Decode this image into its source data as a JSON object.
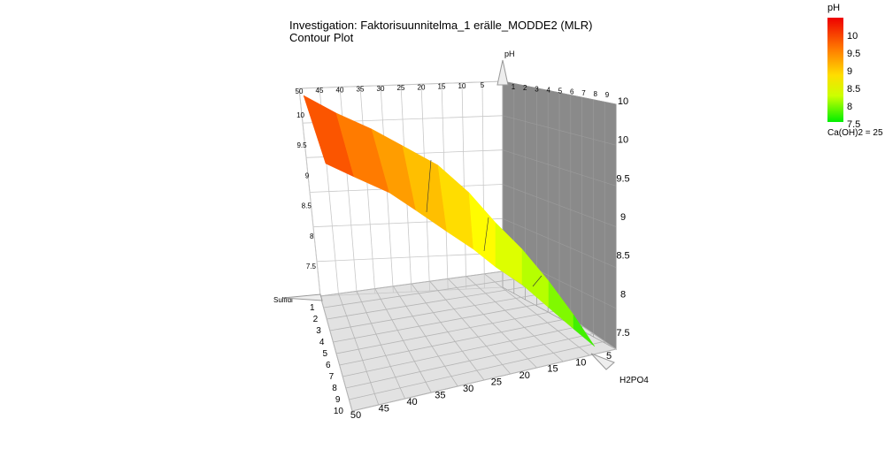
{
  "chart_data": {
    "type": "surface",
    "title": "Investigation: Faktorisuunnitelma_1 erälle_MODDE2 (MLR)",
    "subtitle": "Contour Plot",
    "response": "pH",
    "factors": {
      "x": {
        "name": "H2PO4",
        "range": [
          0,
          50
        ],
        "ticks": [
          50,
          45,
          40,
          35,
          30,
          25,
          20,
          15,
          10,
          5
        ]
      },
      "y": {
        "name": "Sulfidi",
        "range": [
          0,
          10
        ],
        "ticks": [
          1,
          2,
          3,
          4,
          5,
          6,
          7,
          8,
          9,
          10
        ]
      },
      "z": {
        "name": "pH",
        "range": [
          7.2,
          10.2
        ],
        "ticks": [
          7.5,
          8,
          8.5,
          9,
          9.5,
          10
        ]
      }
    },
    "back_wall_x_ticks": [
      50,
      45,
      40,
      35,
      30,
      25,
      20,
      15,
      10,
      5
    ],
    "back_wall_y_ticks": [
      1,
      2,
      3,
      4,
      5,
      6,
      7,
      8,
      9
    ],
    "left_wall_z_ticks": [
      "10",
      "9.5",
      "9",
      "8.5",
      "8",
      "7.5"
    ],
    "right_wall_z_ticks": [
      "10",
      "10",
      "9.5",
      "9",
      "8.5",
      "8",
      "7.5"
    ],
    "surface": {
      "x": [
        50,
        45,
        40,
        35,
        30,
        25,
        20,
        15,
        10,
        5,
        0
      ],
      "ph_at_sulfidi_max": [
        10.1,
        9.85,
        9.6,
        9.35,
        9.1,
        8.85,
        8.6,
        8.3,
        8.0,
        7.7,
        7.35
      ],
      "ph_at_sulfidi_min": [
        9.6,
        9.4,
        9.2,
        9.0,
        8.8,
        8.55,
        8.3,
        8.05,
        7.8,
        7.55,
        7.35
      ]
    },
    "colorbar": {
      "title": "pH",
      "ticks": [
        "10",
        "9.5",
        "9",
        "8.5",
        "8",
        "7.5"
      ],
      "colors": [
        "#ee0000",
        "#ff6a00",
        "#ffcc00",
        "#ffff00",
        "#aaff00",
        "#00ee00"
      ],
      "fixed_factor": "Ca(OH)2 = 25"
    }
  }
}
